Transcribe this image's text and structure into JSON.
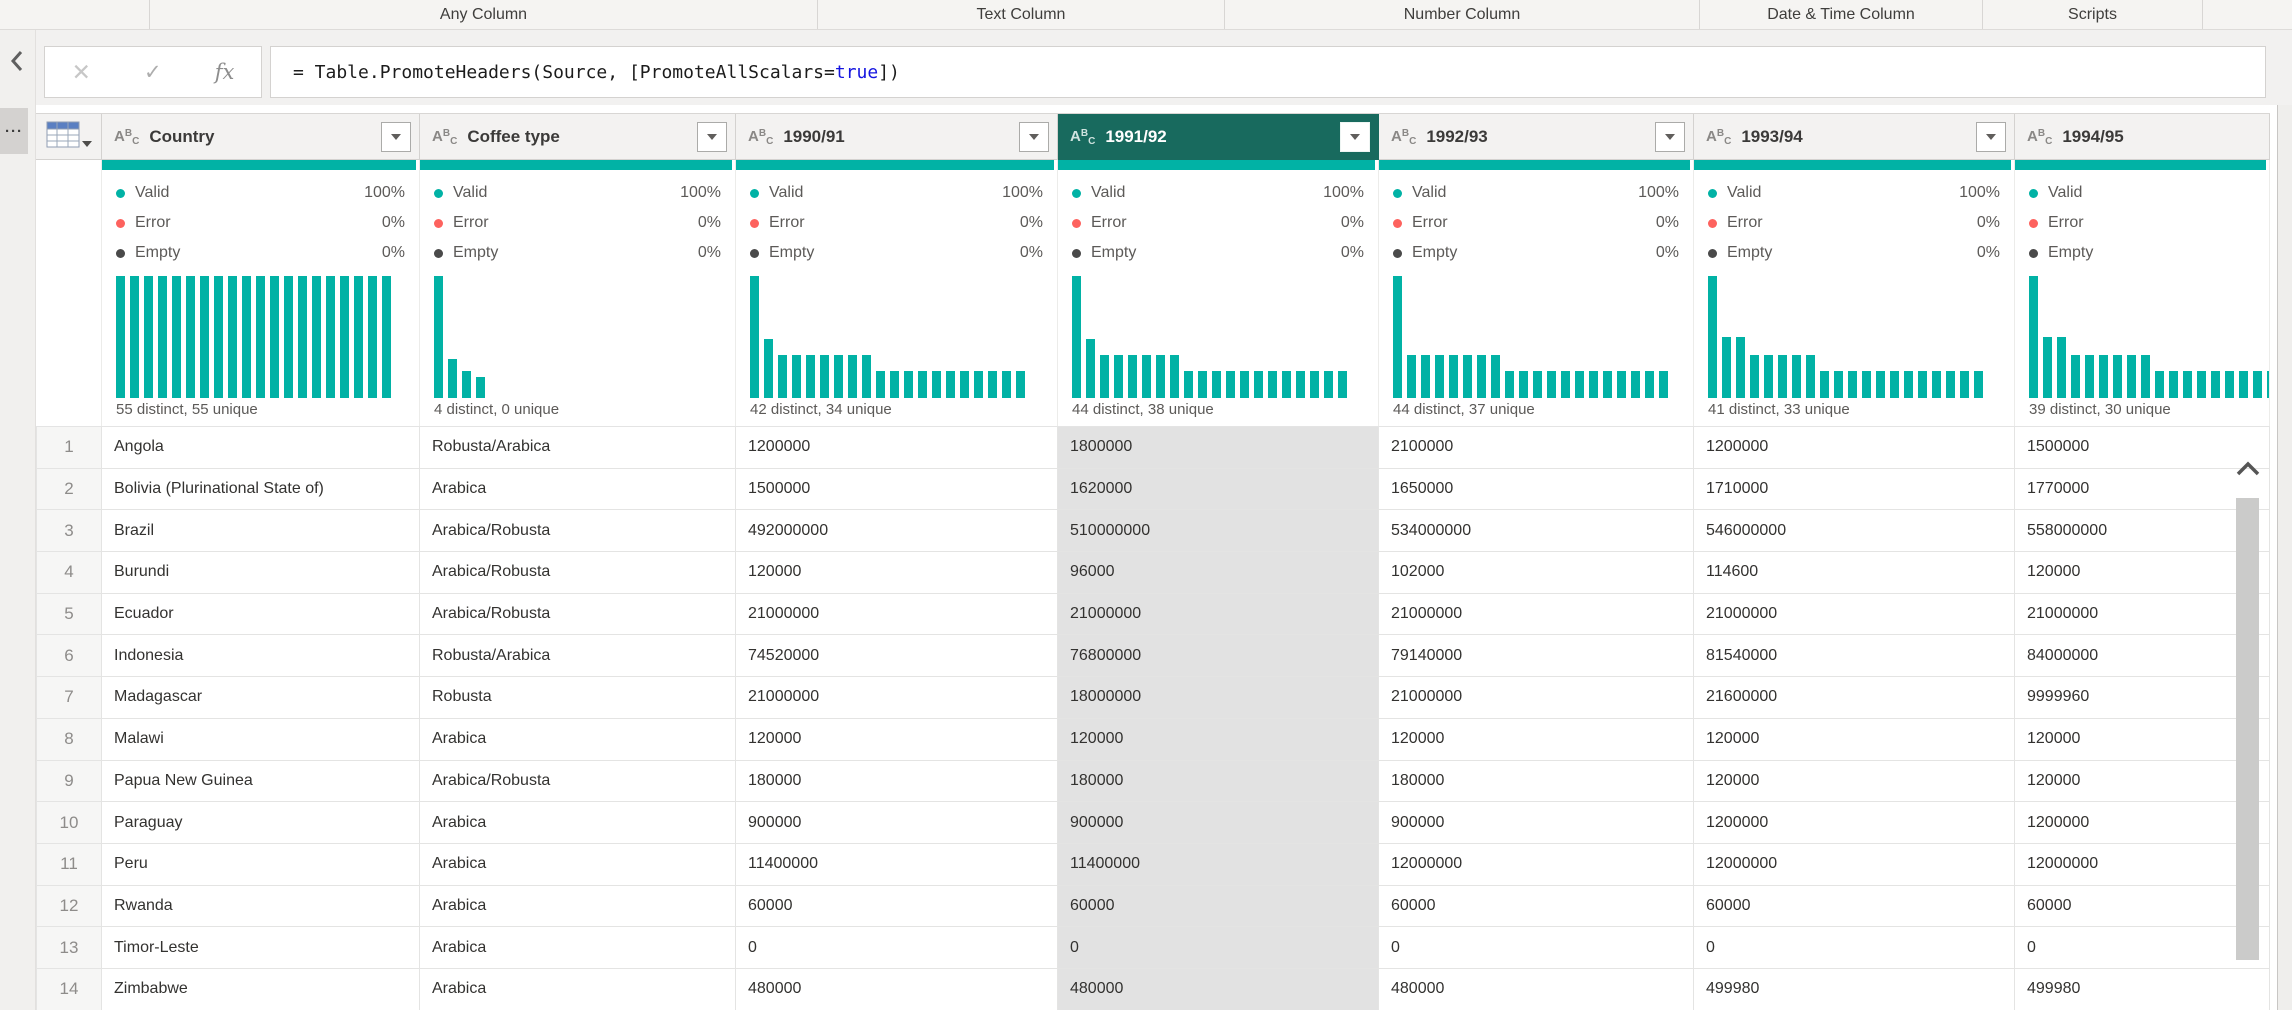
{
  "ribbon": {
    "groups": [
      {
        "label": ""
      },
      {
        "label": "Any Column"
      },
      {
        "label": "Text Column"
      },
      {
        "label": "Number Column"
      },
      {
        "label": "Date & Time Column"
      },
      {
        "label": "Scripts"
      },
      {
        "label": ""
      }
    ]
  },
  "left_rail": {
    "overflow_dots": "···"
  },
  "formula_bar": {
    "cancel_icon": "✕",
    "check_icon": "✓",
    "fx_icon": "fx",
    "formula": {
      "before": "= Table.PromoteHeaders(Source, [PromoteAllScalars=",
      "keyword": "true",
      "after": "])"
    }
  },
  "colors": {
    "accent": "#01b2a5",
    "selected_header": "#186a5e",
    "error_dot": "#fd625e",
    "empty_dot": "#4a4a4a"
  },
  "table": {
    "stats_labels": {
      "valid": "Valid",
      "error": "Error",
      "empty": "Empty"
    },
    "columns": [
      {
        "type_icon": "ABC",
        "name": "Country",
        "selected": false,
        "has_filter": true,
        "valid": "100%",
        "error": "0%",
        "empty": "0%",
        "distinct": "55 distinct, 55 unique",
        "bars": [
          1,
          1,
          1,
          1,
          1,
          1,
          1,
          1,
          1,
          1,
          1,
          1,
          1,
          1,
          1,
          1,
          1,
          1,
          1,
          1
        ]
      },
      {
        "type_icon": "ABC",
        "name": "Coffee type",
        "selected": false,
        "has_filter": true,
        "valid": "100%",
        "error": "0%",
        "empty": "0%",
        "distinct": "4 distinct, 0 unique",
        "bars": [
          1,
          0.32,
          0.22,
          0.17
        ]
      },
      {
        "type_icon": "ABC",
        "name": "1990/91",
        "selected": false,
        "has_filter": true,
        "valid": "100%",
        "error": "0%",
        "empty": "0%",
        "distinct": "42 distinct, 34 unique",
        "bars": [
          1,
          0.48,
          0.35,
          0.35,
          0.35,
          0.35,
          0.35,
          0.35,
          0.35,
          0.22,
          0.22,
          0.22,
          0.22,
          0.22,
          0.22,
          0.22,
          0.22,
          0.22,
          0.22,
          0.22
        ]
      },
      {
        "type_icon": "ABC",
        "name": "1991/92",
        "selected": true,
        "has_filter": true,
        "valid": "100%",
        "error": "0%",
        "empty": "0%",
        "distinct": "44 distinct, 38 unique",
        "bars": [
          1,
          0.48,
          0.35,
          0.35,
          0.35,
          0.35,
          0.35,
          0.35,
          0.22,
          0.22,
          0.22,
          0.22,
          0.22,
          0.22,
          0.22,
          0.22,
          0.22,
          0.22,
          0.22,
          0.22
        ]
      },
      {
        "type_icon": "ABC",
        "name": "1992/93",
        "selected": false,
        "has_filter": true,
        "valid": "100%",
        "error": "0%",
        "empty": "0%",
        "distinct": "44 distinct, 37 unique",
        "bars": [
          1,
          0.35,
          0.35,
          0.35,
          0.35,
          0.35,
          0.35,
          0.35,
          0.22,
          0.22,
          0.22,
          0.22,
          0.22,
          0.22,
          0.22,
          0.22,
          0.22,
          0.22,
          0.22,
          0.22
        ]
      },
      {
        "type_icon": "ABC",
        "name": "1993/94",
        "selected": false,
        "has_filter": true,
        "valid": "100%",
        "error": "0%",
        "empty": "0%",
        "distinct": "41 distinct, 33 unique",
        "bars": [
          1,
          0.5,
          0.5,
          0.35,
          0.35,
          0.35,
          0.35,
          0.35,
          0.22,
          0.22,
          0.22,
          0.22,
          0.22,
          0.22,
          0.22,
          0.22,
          0.22,
          0.22,
          0.22,
          0.22
        ]
      },
      {
        "type_icon": "ABC",
        "name": "1994/95",
        "selected": false,
        "has_filter": false,
        "valid": "",
        "error": "",
        "empty": "",
        "distinct": "39 distinct, 30 unique",
        "bars": [
          1,
          0.5,
          0.5,
          0.35,
          0.35,
          0.35,
          0.35,
          0.35,
          0.35,
          0.22,
          0.22,
          0.22,
          0.22,
          0.22,
          0.22,
          0.22,
          0.22,
          0.22,
          0.22,
          0.22
        ]
      }
    ],
    "rows": [
      {
        "num": "1",
        "cells": [
          "Angola",
          "Robusta/Arabica",
          "1200000",
          "1800000",
          "2100000",
          "1200000",
          "1500000"
        ]
      },
      {
        "num": "2",
        "cells": [
          "Bolivia (Plurinational State of)",
          "Arabica",
          "1500000",
          "1620000",
          "1650000",
          "1710000",
          "1770000"
        ]
      },
      {
        "num": "3",
        "cells": [
          "Brazil",
          "Arabica/Robusta",
          "492000000",
          "510000000",
          "534000000",
          "546000000",
          "558000000"
        ]
      },
      {
        "num": "4",
        "cells": [
          "Burundi",
          "Arabica/Robusta",
          "120000",
          "96000",
          "102000",
          "114600",
          "120000"
        ]
      },
      {
        "num": "5",
        "cells": [
          "Ecuador",
          "Arabica/Robusta",
          "21000000",
          "21000000",
          "21000000",
          "21000000",
          "21000000"
        ]
      },
      {
        "num": "6",
        "cells": [
          "Indonesia",
          "Robusta/Arabica",
          "74520000",
          "76800000",
          "79140000",
          "81540000",
          "84000000"
        ]
      },
      {
        "num": "7",
        "cells": [
          "Madagascar",
          "Robusta",
          "21000000",
          "18000000",
          "21000000",
          "21600000",
          "9999960"
        ]
      },
      {
        "num": "8",
        "cells": [
          "Malawi",
          "Arabica",
          "120000",
          "120000",
          "120000",
          "120000",
          "120000"
        ]
      },
      {
        "num": "9",
        "cells": [
          "Papua New Guinea",
          "Arabica/Robusta",
          "180000",
          "180000",
          "180000",
          "120000",
          "120000"
        ]
      },
      {
        "num": "10",
        "cells": [
          "Paraguay",
          "Arabica",
          "900000",
          "900000",
          "900000",
          "1200000",
          "1200000"
        ]
      },
      {
        "num": "11",
        "cells": [
          "Peru",
          "Arabica",
          "11400000",
          "11400000",
          "12000000",
          "12000000",
          "12000000"
        ]
      },
      {
        "num": "12",
        "cells": [
          "Rwanda",
          "Arabica",
          "60000",
          "60000",
          "60000",
          "60000",
          "60000"
        ]
      },
      {
        "num": "13",
        "cells": [
          "Timor-Leste",
          "Arabica",
          "0",
          "0",
          "0",
          "0",
          "0"
        ]
      },
      {
        "num": "14",
        "cells": [
          "Zimbabwe",
          "Arabica",
          "480000",
          "480000",
          "480000",
          "499980",
          "499980"
        ]
      }
    ]
  }
}
